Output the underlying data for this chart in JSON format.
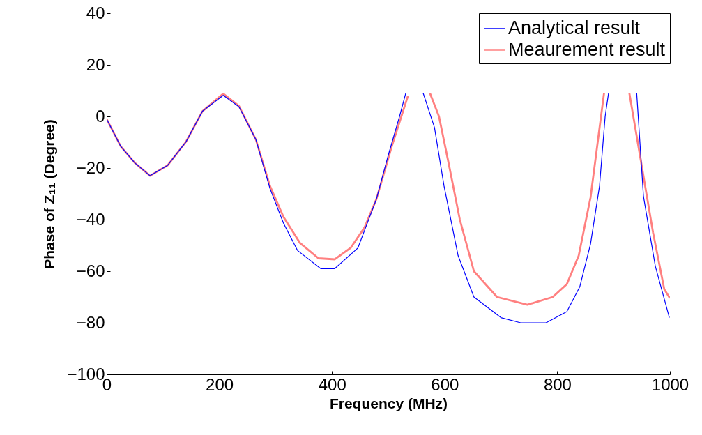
{
  "chart_data": {
    "type": "line",
    "xlabel": "Frequency (MHz)",
    "ylabel": "Phase of Z₁₁ (Degree)",
    "xlim": [
      0,
      1000
    ],
    "ylim": [
      -100,
      40
    ],
    "xticks": [
      0,
      200,
      400,
      600,
      800,
      1000
    ],
    "yticks": [
      -100,
      -80,
      -60,
      -40,
      -20,
      0,
      20,
      40
    ],
    "grid": false,
    "legend": "top right",
    "line_style": "solid",
    "series": [
      {
        "name": "Analytical result",
        "color": "#0000ff",
        "x": [
          0,
          25,
          50,
          77,
          108,
          141,
          170,
          207,
          235,
          265,
          290,
          314,
          339,
          380,
          405,
          446,
          479,
          500,
          520,
          531,
          545,
          562,
          582,
          599,
          624,
          652,
          700,
          735,
          780,
          817,
          840,
          859,
          875,
          885,
          891,
          910,
          941,
          953,
          974,
          999
        ],
        "values": [
          -1,
          -11.6,
          -18,
          -23,
          -19,
          -9.8,
          2,
          8.2,
          3.7,
          -9,
          -28,
          -41.4,
          -52,
          -59,
          -59,
          -51,
          -32,
          -15,
          0,
          9,
          null,
          9,
          -4.3,
          -27,
          -54,
          -70,
          -78,
          -80,
          -80,
          -75.7,
          -66,
          -49.5,
          -27,
          0,
          9,
          null,
          9,
          -31,
          -58,
          -78
        ]
      },
      {
        "name": "Meaurement result",
        "color": "#ff8080",
        "x": [
          0,
          25,
          50,
          77,
          108,
          141,
          170,
          207,
          235,
          265,
          290,
          314,
          343,
          376,
          405,
          433,
          458,
          479,
          507,
          535,
          555,
          574,
          590,
          607,
          627,
          652,
          693,
          747,
          792,
          817,
          838,
          859,
          875,
          883,
          905,
          928,
          949,
          970,
          990,
          1000
        ],
        "values": [
          -1,
          -11.6,
          -18,
          -23,
          -19,
          -9.8,
          2,
          8.8,
          4,
          -9,
          -27,
          -39,
          -49,
          -55,
          -55.4,
          -51,
          -43,
          -32,
          -11,
          8,
          null,
          9,
          0,
          -18,
          -40,
          -60,
          -70,
          -73,
          -70,
          -65,
          -54,
          -31.5,
          -4.5,
          9,
          null,
          9,
          -18,
          -45,
          -67,
          -70.5
        ]
      }
    ]
  }
}
